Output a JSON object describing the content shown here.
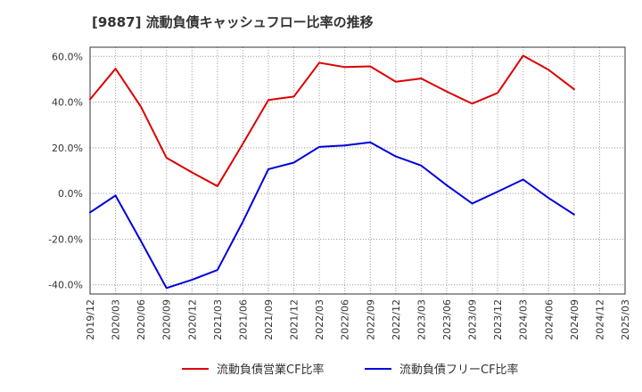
{
  "chart_data": {
    "type": "line",
    "title": "[9887]  流動負債キャッシュフロー比率の推移",
    "xlabel": "",
    "ylabel": "",
    "categories": [
      "2019/12",
      "2020/03",
      "2020/06",
      "2020/09",
      "2020/12",
      "2021/03",
      "2021/06",
      "2021/09",
      "2021/12",
      "2022/03",
      "2022/06",
      "2022/09",
      "2022/12",
      "2023/03",
      "2023/06",
      "2023/09",
      "2023/12",
      "2024/03",
      "2024/06",
      "2024/09",
      "2024/12",
      "2025/03"
    ],
    "ylim": [
      -44,
      64
    ],
    "yticks": [
      -40,
      -20,
      0,
      20,
      40,
      60
    ],
    "ytick_labels": [
      "-40.0%",
      "-20.0%",
      "0.0%",
      "20.0%",
      "40.0%",
      "60.0%"
    ],
    "grid": true,
    "legend_position": "bottom",
    "series": [
      {
        "name": "流動負債営業CF比率",
        "color": "#dd0000",
        "values": [
          41.2,
          54.6,
          37.9,
          15.6,
          9.2,
          3.2,
          21.8,
          40.9,
          42.4,
          57.2,
          55.3,
          55.6,
          48.9,
          50.3,
          44.6,
          39.3,
          44.0,
          60.3,
          54.1,
          45.6,
          null,
          null
        ]
      },
      {
        "name": "流動負債フリーCF比率",
        "color": "#0000dd",
        "values": [
          -8.3,
          -0.9,
          -20.9,
          -41.4,
          -37.8,
          -33.5,
          -12.3,
          10.6,
          13.5,
          20.4,
          21.0,
          22.4,
          16.2,
          12.2,
          3.6,
          -4.4,
          0.8,
          6.1,
          -2.0,
          -9.2,
          null,
          null
        ]
      }
    ]
  },
  "colors": {
    "grid": "#999999",
    "axis": "#333333",
    "background": "#ffffff"
  }
}
